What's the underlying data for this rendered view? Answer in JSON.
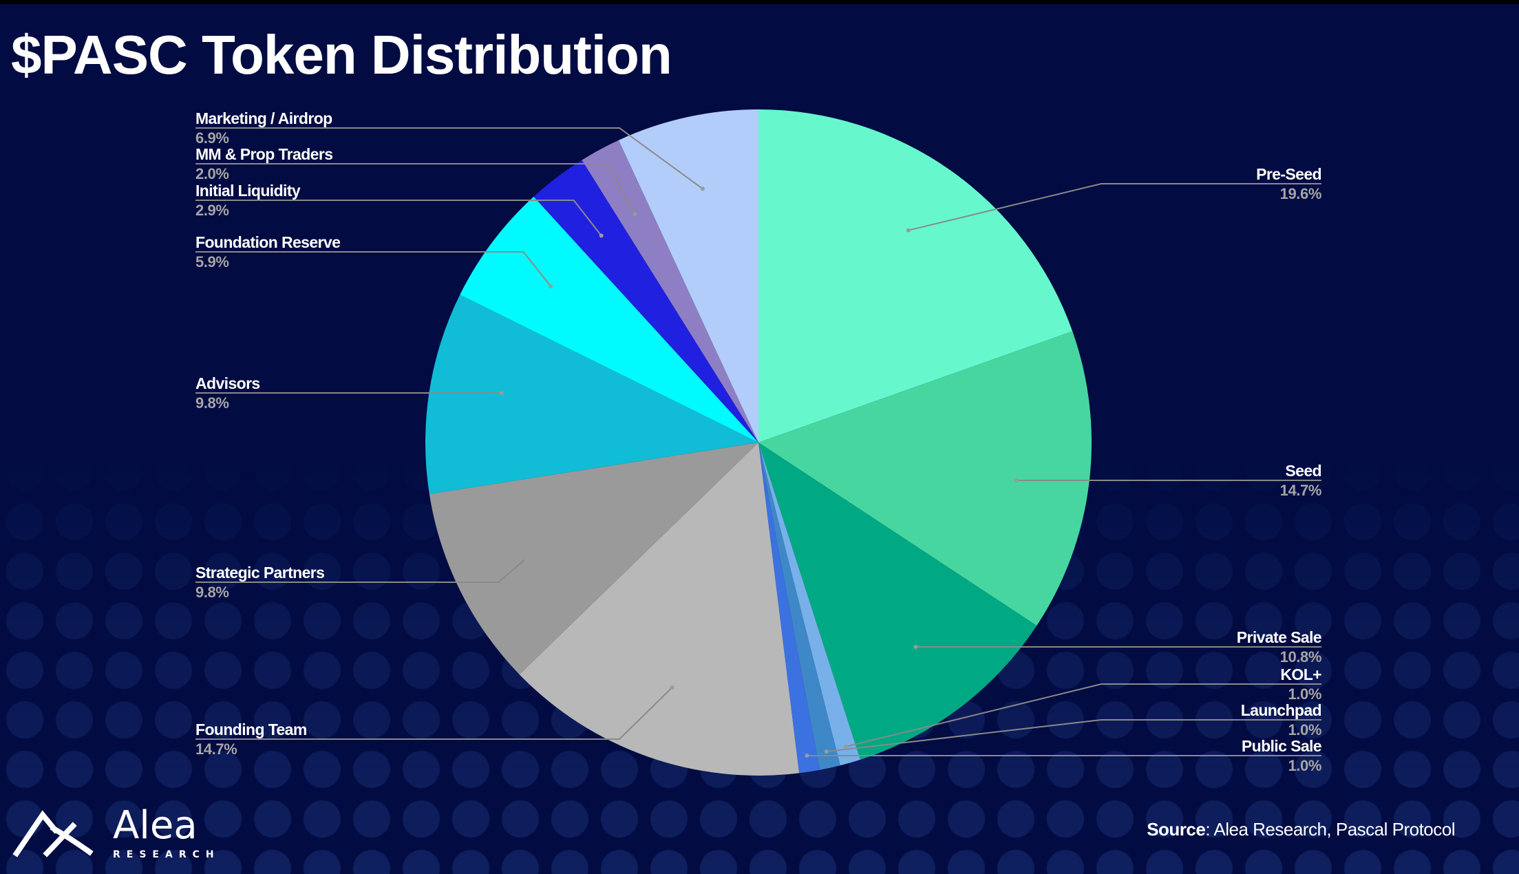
{
  "title": "$PASC Token Distribution",
  "source": {
    "label": "Source",
    "text": ": Alea Research, Pascal Protocol"
  },
  "logo": {
    "name": "Alea",
    "sub": "RESEARCH"
  },
  "background_color": "#020c42",
  "chart_data": {
    "type": "pie",
    "title": "$PASC Token Distribution",
    "start": "12 o'clock, clockwise",
    "slices": [
      {
        "label": "Pre-Seed",
        "value": 19.6,
        "pct": "19.6%",
        "color": "#66f8cc",
        "side": "right"
      },
      {
        "label": "Seed",
        "value": 14.7,
        "pct": "14.7%",
        "color": "#48d6a0",
        "side": "right"
      },
      {
        "label": "Private Sale",
        "value": 10.8,
        "pct": "10.8%",
        "color": "#00a884",
        "side": "right"
      },
      {
        "label": "KOL+",
        "value": 1.0,
        "pct": "1.0%",
        "color": "#78b0ea",
        "side": "right"
      },
      {
        "label": "Launchpad",
        "value": 1.0,
        "pct": "1.0%",
        "color": "#3f88c8",
        "side": "right"
      },
      {
        "label": "Public Sale",
        "value": 1.0,
        "pct": "1.0%",
        "color": "#3b72e0",
        "side": "right"
      },
      {
        "label": "Founding Team",
        "value": 14.7,
        "pct": "14.7%",
        "color": "#b8b8b8",
        "side": "left"
      },
      {
        "label": "Strategic Partners",
        "value": 9.8,
        "pct": "9.8%",
        "color": "#9a9a9a",
        "side": "left"
      },
      {
        "label": "Advisors",
        "value": 9.8,
        "pct": "9.8%",
        "color": "#10bcd6",
        "side": "left"
      },
      {
        "label": "Foundation Reserve",
        "value": 5.9,
        "pct": "5.9%",
        "color": "#00fbff",
        "side": "left"
      },
      {
        "label": "Initial Liquidity",
        "value": 2.9,
        "pct": "2.9%",
        "color": "#2020e0",
        "side": "left"
      },
      {
        "label": "MM & Prop Traders",
        "value": 2.0,
        "pct": "2.0%",
        "color": "#8e7ec4",
        "side": "left"
      },
      {
        "label": "Marketing / Airdrop",
        "value": 6.9,
        "pct": "6.9%",
        "color": "#b3cdfb",
        "side": "left"
      }
    ]
  }
}
